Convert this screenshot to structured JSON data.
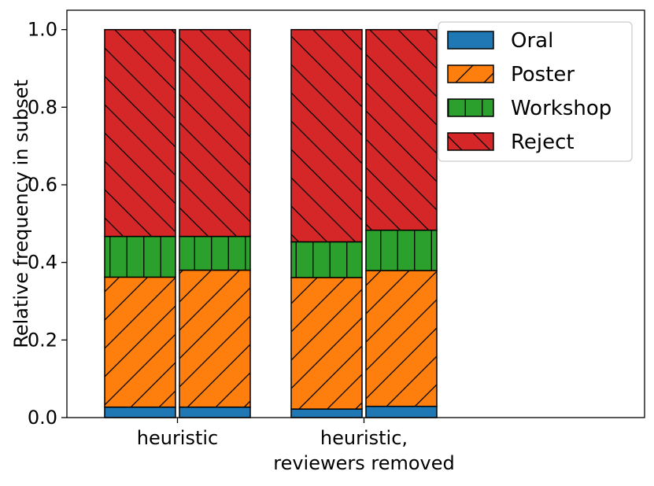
{
  "chart_data": {
    "type": "bar",
    "stacked": true,
    "categories": [
      "heuristic",
      "heuristic,\nreviewers removed"
    ],
    "ylabel": "Relative frequency in subset",
    "xlabel": "",
    "ylim": [
      0,
      1.05
    ],
    "yticks": [
      "0.0",
      "0.2",
      "0.4",
      "0.6",
      "0.8",
      "1.0"
    ],
    "grid": false,
    "legend_position": "top-right",
    "bars_per_category": 2,
    "series": [
      {
        "name": "Oral",
        "color": "#1f77b4",
        "hatch": "none",
        "values": [
          [
            0.027,
            0.027
          ],
          [
            0.022,
            0.029
          ]
        ]
      },
      {
        "name": "Poster",
        "color": "#ff7f0e",
        "hatch": "forward-diagonal",
        "values": [
          [
            0.335,
            0.353
          ],
          [
            0.339,
            0.35
          ]
        ]
      },
      {
        "name": "Workshop",
        "color": "#2ca02c",
        "hatch": "vertical",
        "values": [
          [
            0.105,
            0.087
          ],
          [
            0.092,
            0.104
          ]
        ]
      },
      {
        "name": "Reject",
        "color": "#d62728",
        "hatch": "back-diagonal",
        "values": [
          [
            0.533,
            0.533
          ],
          [
            0.547,
            0.517
          ]
        ]
      }
    ]
  }
}
